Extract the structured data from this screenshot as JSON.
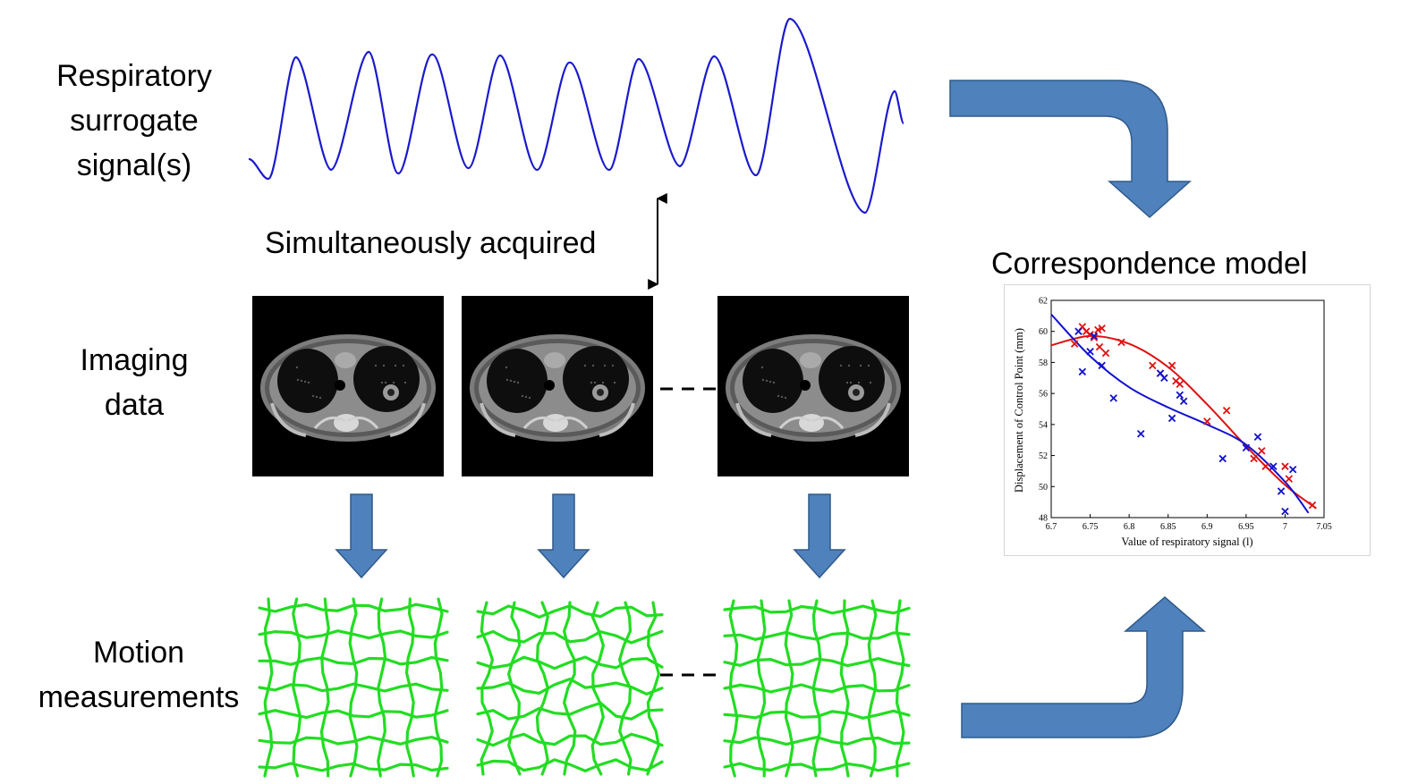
{
  "labels": {
    "respiratory_line1": "Respiratory",
    "respiratory_line2": "surrogate",
    "respiratory_line3": "signal(s)",
    "simultaneous": "Simultaneously acquired",
    "imaging_line1": "Imaging",
    "imaging_line2": "data",
    "motion_line1": "Motion",
    "motion_line2": "measurements",
    "correspondence": "Correspondence model"
  },
  "colors": {
    "signal": "#1a1acc",
    "arrow_fill": "#4f81bd",
    "arrow_stroke": "#2f5a8a",
    "grid": "#22dd22",
    "series_red": "#e01010",
    "series_blue": "#1010d0"
  },
  "icons": {
    "ct_slice": "ct-chest-slice-image",
    "deformation_grid": "deformation-grid-image"
  },
  "chart_data": {
    "type": "scatter",
    "xlabel": "Value of respiratory signal (l)",
    "ylabel": "Displacement of Control Point (mm)",
    "xlim": [
      6.7,
      7.05
    ],
    "ylim": [
      48,
      62
    ],
    "xticks": [
      "6.7",
      "6.75",
      "6.8",
      "6.85",
      "6.9",
      "6.95",
      "7",
      "7.05"
    ],
    "yticks": [
      "48",
      "50",
      "52",
      "54",
      "56",
      "58",
      "60",
      "62"
    ],
    "grid": false,
    "series": [
      {
        "color": "red",
        "marker": "x",
        "points": [
          [
            6.73,
            59.2
          ],
          [
            6.74,
            60.3
          ],
          [
            6.745,
            60.0
          ],
          [
            6.75,
            59.8
          ],
          [
            6.755,
            59.6
          ],
          [
            6.76,
            60.1
          ],
          [
            6.765,
            60.2
          ],
          [
            6.762,
            59.0
          ],
          [
            6.77,
            58.6
          ],
          [
            6.79,
            59.3
          ],
          [
            6.83,
            57.8
          ],
          [
            6.84,
            57.3
          ],
          [
            6.855,
            57.8
          ],
          [
            6.86,
            56.8
          ],
          [
            6.865,
            56.6
          ],
          [
            6.9,
            54.2
          ],
          [
            6.925,
            54.9
          ],
          [
            6.96,
            51.8
          ],
          [
            6.97,
            52.3
          ],
          [
            6.975,
            51.3
          ],
          [
            7.0,
            51.3
          ],
          [
            7.005,
            50.5
          ],
          [
            7.035,
            48.8
          ]
        ],
        "fit_curve": [
          [
            6.7,
            59.1
          ],
          [
            6.75,
            59.7
          ],
          [
            6.8,
            59.2
          ],
          [
            6.85,
            57.7
          ],
          [
            6.9,
            55.3
          ],
          [
            6.95,
            52.6
          ],
          [
            7.0,
            50.1
          ],
          [
            7.04,
            48.6
          ]
        ]
      },
      {
        "color": "blue",
        "marker": "x",
        "points": [
          [
            6.735,
            60.0
          ],
          [
            6.74,
            57.4
          ],
          [
            6.75,
            58.7
          ],
          [
            6.755,
            59.7
          ],
          [
            6.765,
            57.8
          ],
          [
            6.78,
            55.7
          ],
          [
            6.815,
            53.4
          ],
          [
            6.84,
            57.3
          ],
          [
            6.845,
            57.0
          ],
          [
            6.855,
            54.4
          ],
          [
            6.865,
            55.9
          ],
          [
            6.87,
            55.5
          ],
          [
            6.92,
            51.8
          ],
          [
            6.95,
            52.5
          ],
          [
            6.965,
            53.2
          ],
          [
            6.985,
            51.3
          ],
          [
            6.995,
            49.7
          ],
          [
            7.0,
            48.4
          ],
          [
            7.01,
            51.1
          ]
        ],
        "fit_curve": [
          [
            6.7,
            61.1
          ],
          [
            6.75,
            58.4
          ],
          [
            6.8,
            56.4
          ],
          [
            6.85,
            55.1
          ],
          [
            6.9,
            54.0
          ],
          [
            6.95,
            52.7
          ],
          [
            7.0,
            50.3
          ],
          [
            7.03,
            48.3
          ]
        ]
      }
    ]
  }
}
